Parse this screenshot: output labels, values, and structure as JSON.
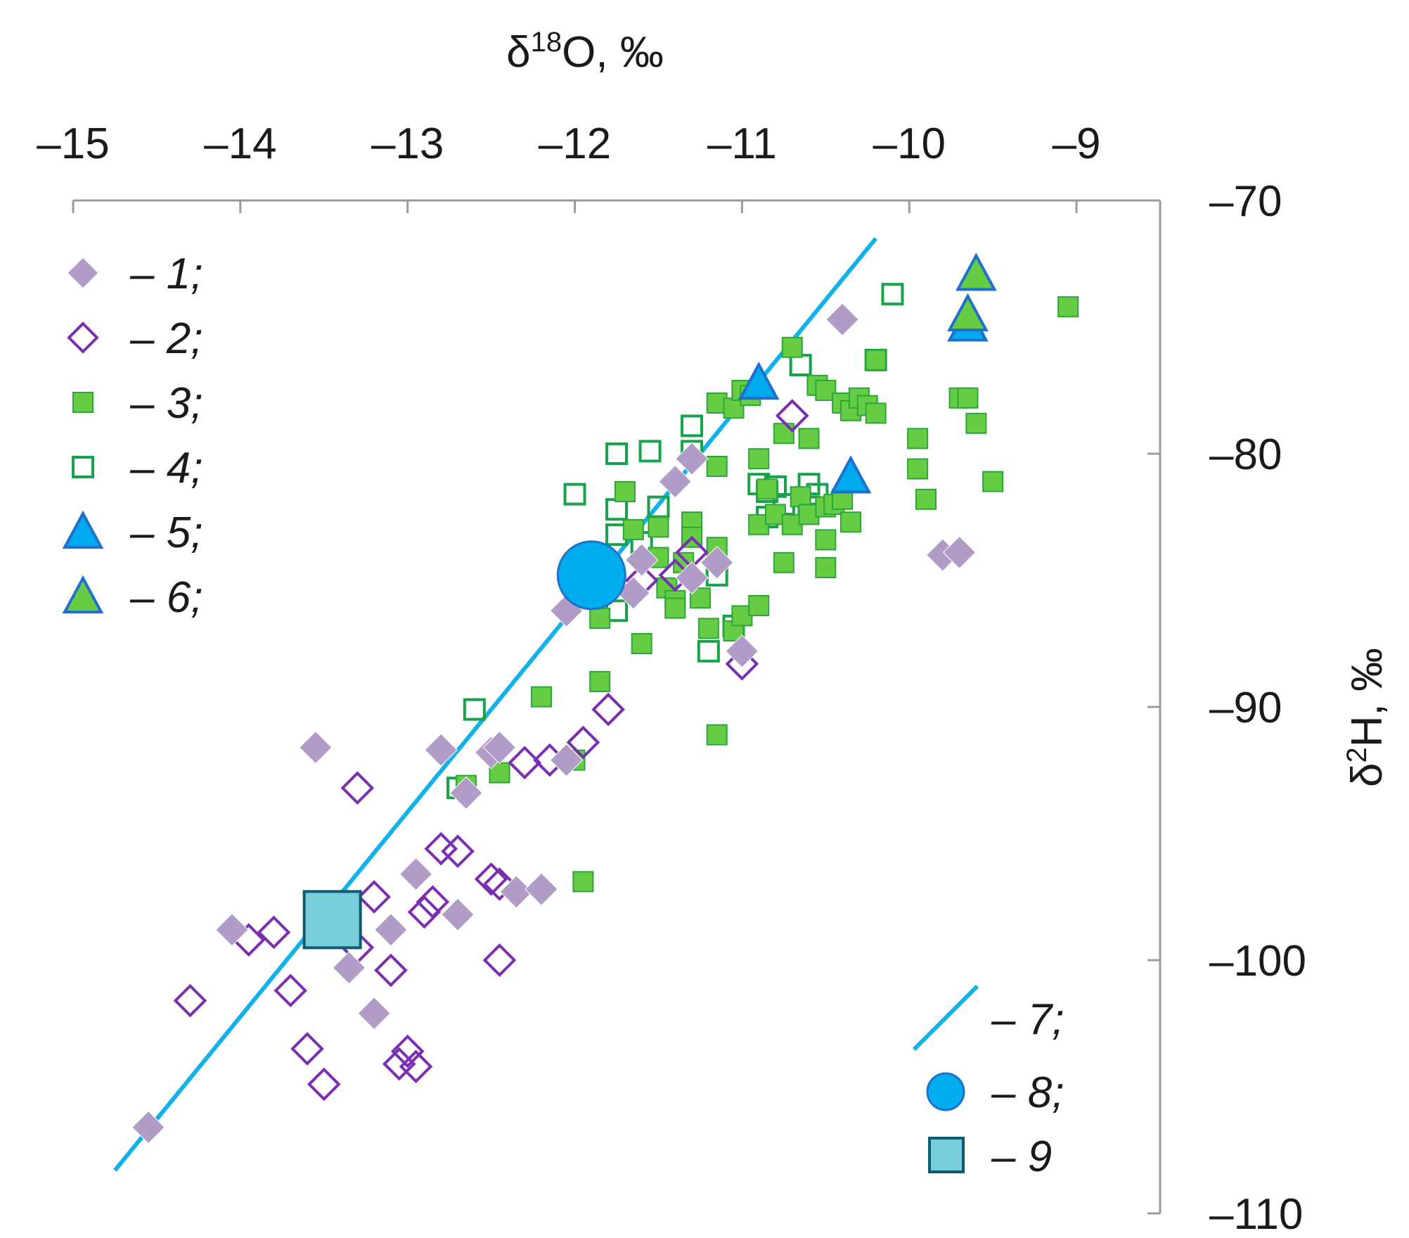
{
  "chart_data": {
    "type": "scatter",
    "title": "",
    "xlabel": "δ18O, ‰",
    "xlabel_main": "δ",
    "xlabel_sup": "18",
    "xlabel_tail": "O, ‰",
    "ylabel": "δ2H, ‰",
    "ylabel_main": "δ",
    "ylabel_sup": "2",
    "ylabel_tail": "H, ‰",
    "x_axis_position": "top",
    "y_axis_position": "right",
    "xlim": [
      -15,
      -8.5
    ],
    "ylim": [
      -110,
      -70
    ],
    "xticks": [
      -15,
      -14,
      -13,
      -12,
      -11,
      -10,
      -9
    ],
    "yticks": [
      -70,
      -80,
      -90,
      -100,
      -110
    ],
    "xtick_labels": [
      "–15",
      "–14",
      "–13",
      "–12",
      "–11",
      "–10",
      "–9"
    ],
    "ytick_labels": [
      "–70",
      "–80",
      "–90",
      "–100",
      "–110"
    ],
    "grid": false,
    "colors": {
      "s1_fill": "#b09cc6",
      "s2_stroke": "#7a2fb0",
      "s3_fill": "#66cc44",
      "s3_stroke": "#2aa63a",
      "s4_stroke": "#16a34a",
      "s5_fill": "#00aaee",
      "s5_stroke": "#1f6fcc",
      "s6_fill": "#66cc44",
      "line7": "#11b2ea",
      "s8_fill": "#00aeef",
      "s8_stroke": "#1f6fcc",
      "s9_fill": "#78cddc",
      "s9_stroke": "#0f5a6e",
      "axis": "#9a9a9a"
    },
    "series": [
      {
        "id": "s1",
        "name": "1",
        "marker": "diamond-filled",
        "legend_label": "1;",
        "points": [
          [
            -14.55,
            -106.6
          ],
          [
            -14.05,
            -98.8
          ],
          [
            -13.55,
            -91.6
          ],
          [
            -13.35,
            -100.3
          ],
          [
            -13.2,
            -102.1
          ],
          [
            -13.1,
            -98.8
          ],
          [
            -12.95,
            -96.6
          ],
          [
            -12.8,
            -91.7
          ],
          [
            -12.7,
            -98.2
          ],
          [
            -12.65,
            -93.4
          ],
          [
            -12.5,
            -91.8
          ],
          [
            -12.45,
            -91.6
          ],
          [
            -12.35,
            -97.3
          ],
          [
            -12.2,
            -97.2
          ],
          [
            -12.05,
            -92.1
          ],
          [
            -12.05,
            -86.2
          ],
          [
            -11.65,
            -85.5
          ],
          [
            -11.6,
            -84.2
          ],
          [
            -11.4,
            -81.1
          ],
          [
            -11.3,
            -80.2
          ],
          [
            -11.3,
            -84.9
          ],
          [
            -11.15,
            -84.3
          ],
          [
            -11.0,
            -87.8
          ],
          [
            -10.4,
            -74.7
          ],
          [
            -9.8,
            -84.0
          ],
          [
            -9.7,
            -83.9
          ]
        ]
      },
      {
        "id": "s2",
        "name": "2",
        "marker": "diamond-open",
        "legend_label": "2;",
        "points": [
          [
            -14.3,
            -101.6
          ],
          [
            -13.95,
            -99.2
          ],
          [
            -13.8,
            -98.9
          ],
          [
            -13.7,
            -101.2
          ],
          [
            -13.6,
            -103.5
          ],
          [
            -13.5,
            -104.9
          ],
          [
            -13.3,
            -99.5
          ],
          [
            -13.3,
            -93.2
          ],
          [
            -13.2,
            -97.5
          ],
          [
            -13.1,
            -100.4
          ],
          [
            -13.05,
            -104.1
          ],
          [
            -13.0,
            -103.6
          ],
          [
            -12.95,
            -104.2
          ],
          [
            -12.9,
            -98.1
          ],
          [
            -12.85,
            -97.7
          ],
          [
            -12.8,
            -95.6
          ],
          [
            -12.7,
            -95.7
          ],
          [
            -12.5,
            -96.8
          ],
          [
            -12.45,
            -97.0
          ],
          [
            -12.45,
            -100.0
          ],
          [
            -12.3,
            -92.2
          ],
          [
            -12.15,
            -92.1
          ],
          [
            -11.95,
            -91.4
          ],
          [
            -11.8,
            -90.1
          ],
          [
            -11.6,
            -85.0
          ],
          [
            -11.4,
            -84.8
          ],
          [
            -11.3,
            -83.9
          ],
          [
            -11.0,
            -88.3
          ],
          [
            -10.7,
            -78.5
          ]
        ]
      },
      {
        "id": "s3",
        "name": "3",
        "marker": "square-filled",
        "legend_label": "3;",
        "points": [
          [
            -12.65,
            -93.1
          ],
          [
            -12.45,
            -92.6
          ],
          [
            -12.2,
            -89.6
          ],
          [
            -12.0,
            -92.1
          ],
          [
            -11.95,
            -96.9
          ],
          [
            -11.85,
            -89.0
          ],
          [
            -11.85,
            -86.5
          ],
          [
            -11.7,
            -81.5
          ],
          [
            -11.65,
            -83.0
          ],
          [
            -11.6,
            -87.5
          ],
          [
            -11.5,
            -82.9
          ],
          [
            -11.5,
            -84.1
          ],
          [
            -11.45,
            -85.3
          ],
          [
            -11.4,
            -85.8
          ],
          [
            -11.4,
            -86.1
          ],
          [
            -11.35,
            -84.3
          ],
          [
            -11.3,
            -82.7
          ],
          [
            -11.3,
            -83.3
          ],
          [
            -11.25,
            -85.7
          ],
          [
            -11.2,
            -86.9
          ],
          [
            -11.15,
            -78.0
          ],
          [
            -11.15,
            -80.5
          ],
          [
            -11.15,
            -83.7
          ],
          [
            -11.15,
            -91.1
          ],
          [
            -11.05,
            -78.2
          ],
          [
            -11.05,
            -87.0
          ],
          [
            -11.0,
            -77.5
          ],
          [
            -11.0,
            -86.4
          ],
          [
            -10.95,
            -77.7
          ],
          [
            -10.9,
            -80.2
          ],
          [
            -10.9,
            -82.8
          ],
          [
            -10.9,
            -86.0
          ],
          [
            -10.85,
            -81.4
          ],
          [
            -10.8,
            -82.4
          ],
          [
            -10.75,
            -79.2
          ],
          [
            -10.75,
            -84.3
          ],
          [
            -10.7,
            -75.8
          ],
          [
            -10.7,
            -82.8
          ],
          [
            -10.65,
            -81.7
          ],
          [
            -10.6,
            -82.4
          ],
          [
            -10.6,
            -79.4
          ],
          [
            -10.55,
            -77.3
          ],
          [
            -10.5,
            -77.5
          ],
          [
            -10.5,
            -82.1
          ],
          [
            -10.5,
            -83.4
          ],
          [
            -10.5,
            -84.5
          ],
          [
            -10.45,
            -82.0
          ],
          [
            -10.4,
            -78.0
          ],
          [
            -10.4,
            -81.8
          ],
          [
            -10.35,
            -78.3
          ],
          [
            -10.35,
            -82.7
          ],
          [
            -10.3,
            -77.8
          ],
          [
            -10.25,
            -78.1
          ],
          [
            -10.2,
            -76.3
          ],
          [
            -10.2,
            -78.4
          ],
          [
            -9.95,
            -79.4
          ],
          [
            -9.95,
            -80.6
          ],
          [
            -9.9,
            -81.8
          ],
          [
            -9.7,
            -77.8
          ],
          [
            -9.65,
            -77.8
          ],
          [
            -9.6,
            -78.8
          ],
          [
            -9.5,
            -81.1
          ],
          [
            -9.05,
            -74.2
          ]
        ]
      },
      {
        "id": "s4",
        "name": "4",
        "marker": "square-open",
        "legend_label": "4;",
        "points": [
          [
            -12.7,
            -93.2
          ],
          [
            -12.6,
            -90.1
          ],
          [
            -12.0,
            -81.6
          ],
          [
            -11.75,
            -80.0
          ],
          [
            -11.75,
            -82.2
          ],
          [
            -11.75,
            -83.2
          ],
          [
            -11.75,
            -86.2
          ],
          [
            -11.6,
            -83.5
          ],
          [
            -11.55,
            -79.9
          ],
          [
            -11.5,
            -82.1
          ],
          [
            -11.3,
            -78.9
          ],
          [
            -11.3,
            -79.9
          ],
          [
            -11.2,
            -87.8
          ],
          [
            -11.15,
            -84.8
          ],
          [
            -11.05,
            -86.8
          ],
          [
            -10.9,
            -81.2
          ],
          [
            -10.85,
            -81.5
          ],
          [
            -10.85,
            -82.5
          ],
          [
            -10.8,
            -81.3
          ],
          [
            -10.75,
            -82.0
          ],
          [
            -10.65,
            -76.5
          ],
          [
            -10.6,
            -81.2
          ],
          [
            -10.6,
            -82.1
          ],
          [
            -10.55,
            -81.6
          ],
          [
            -10.1,
            -73.7
          ],
          [
            -10.2,
            -76.3
          ]
        ]
      },
      {
        "id": "s5",
        "name": "5",
        "marker": "triangle-blue",
        "legend_label": "5;",
        "points": [
          [
            -10.9,
            -77.2
          ],
          [
            -10.35,
            -80.9
          ],
          [
            -9.65,
            -74.9
          ]
        ]
      },
      {
        "id": "s6",
        "name": "6",
        "marker": "triangle-green",
        "legend_label": "6;",
        "points": [
          [
            -9.6,
            -72.9
          ],
          [
            -9.65,
            -74.5
          ]
        ]
      }
    ],
    "line": {
      "id": "s7",
      "name": "7",
      "legend_label": "7;",
      "x": [
        -14.75,
        -10.2
      ],
      "y": [
        -108.3,
        -71.5
      ]
    },
    "points_special": [
      {
        "id": "s8",
        "name": "8",
        "marker": "circle",
        "legend_label": "8;",
        "x": -11.9,
        "y": -84.8
      },
      {
        "id": "s9",
        "name": "9",
        "marker": "square-big",
        "legend_label": "9",
        "x": -13.45,
        "y": -98.4
      }
    ],
    "legend": {
      "left_group_position": "top-left",
      "right_group_position": "bottom-right",
      "dash": "–"
    }
  }
}
